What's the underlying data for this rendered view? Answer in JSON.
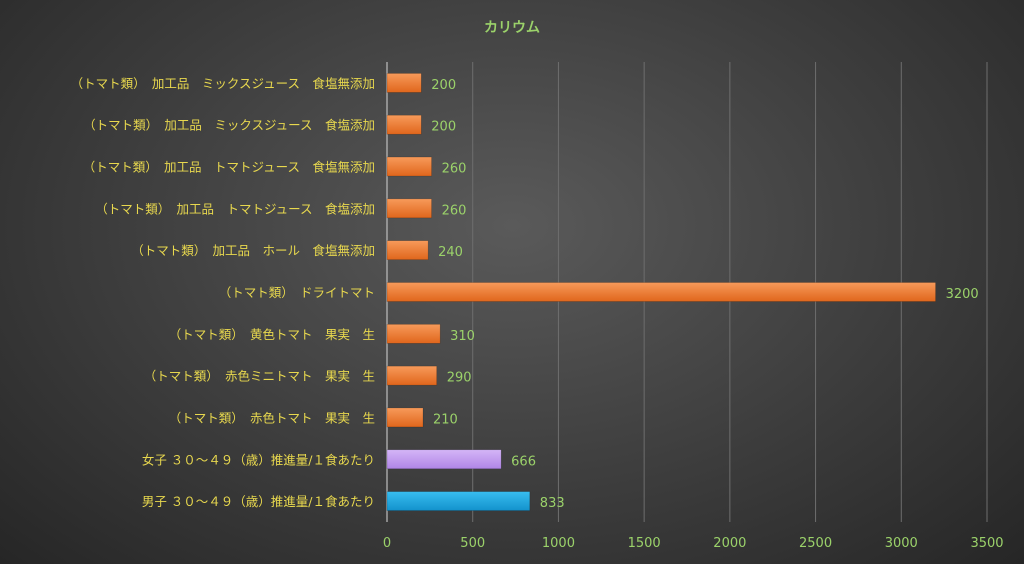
{
  "chart_data": {
    "type": "bar",
    "orientation": "horizontal",
    "title": "カリウム",
    "xlabel": "",
    "ylabel": "",
    "xlim": [
      0,
      3500
    ],
    "x_ticks": [
      0,
      500,
      1000,
      1500,
      2000,
      2500,
      3000,
      3500
    ],
    "grid": true,
    "legend": "none",
    "colors": {
      "default": "#ed7d31",
      "female": "#c39bf0",
      "male": "#1ea7e0",
      "title": "#9bd26a",
      "category_text": "#e8d84e",
      "value_text": "#9bd26a"
    },
    "bars": [
      {
        "category": "（トマト類）　加工品　ミックスジュース　食塩無添加",
        "value": 200,
        "color": "default"
      },
      {
        "category": "（トマト類）　加工品　ミックスジュース　食塩添加",
        "value": 200,
        "color": "default"
      },
      {
        "category": "（トマト類）　加工品　トマトジュース　食塩無添加",
        "value": 260,
        "color": "default"
      },
      {
        "category": "（トマト類）　加工品　トマトジュース　食塩添加",
        "value": 260,
        "color": "default"
      },
      {
        "category": "（トマト類）　加工品　ホール　食塩無添加",
        "value": 240,
        "color": "default"
      },
      {
        "category": "（トマト類）　ドライトマト",
        "value": 3200,
        "color": "default"
      },
      {
        "category": "（トマト類）　黄色トマト　果実　生",
        "value": 310,
        "color": "default"
      },
      {
        "category": "（トマト類）　赤色ミニトマト　果実　生",
        "value": 290,
        "color": "default"
      },
      {
        "category": "（トマト類）　赤色トマト　果実　生",
        "value": 210,
        "color": "default"
      },
      {
        "category": "女子 ３０～４９（歳）推進量/１食あたり",
        "value": 666,
        "color": "female"
      },
      {
        "category": "男子 ３０～４９（歳）推進量/１食あたり",
        "value": 833,
        "color": "male"
      }
    ]
  }
}
